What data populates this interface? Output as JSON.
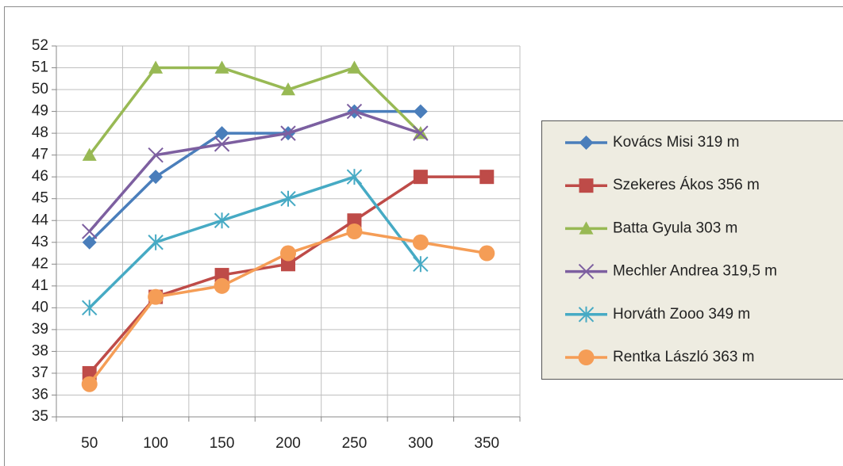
{
  "chart_data": {
    "type": "line",
    "categories": [
      50,
      100,
      150,
      200,
      250,
      300,
      350
    ],
    "ylim": [
      35,
      52
    ],
    "yticks": [
      35,
      36,
      37,
      38,
      39,
      40,
      41,
      42,
      43,
      44,
      45,
      46,
      47,
      48,
      49,
      50,
      51,
      52
    ],
    "grid": true,
    "legend": "right",
    "series": [
      {
        "name": "Kovács Misi 319 m",
        "color": "#4a7ebb",
        "marker": "diamond",
        "values": [
          43,
          46,
          48,
          48,
          49,
          49,
          null
        ]
      },
      {
        "name": "Szekeres Ákos 356 m",
        "color": "#be4b48",
        "marker": "square",
        "values": [
          37,
          40.5,
          41.5,
          42,
          44,
          46,
          46
        ]
      },
      {
        "name": "Batta Gyula 303 m",
        "color": "#98b954",
        "marker": "triangle",
        "values": [
          47,
          51,
          51,
          50,
          51,
          48,
          null
        ]
      },
      {
        "name": "Mechler Andrea 319,5 m",
        "color": "#7d5fa0",
        "marker": "x",
        "values": [
          43.5,
          47,
          47.5,
          48,
          49,
          48,
          null
        ]
      },
      {
        "name": "Horváth Zooo 349 m",
        "color": "#46aac4",
        "marker": "star",
        "values": [
          40,
          43,
          44,
          45,
          46,
          42,
          null
        ]
      },
      {
        "name": "Rentka László 363 m",
        "color": "#f59d56",
        "marker": "circle",
        "values": [
          36.5,
          40.5,
          41,
          42.5,
          43.5,
          43,
          42.5
        ]
      }
    ]
  }
}
